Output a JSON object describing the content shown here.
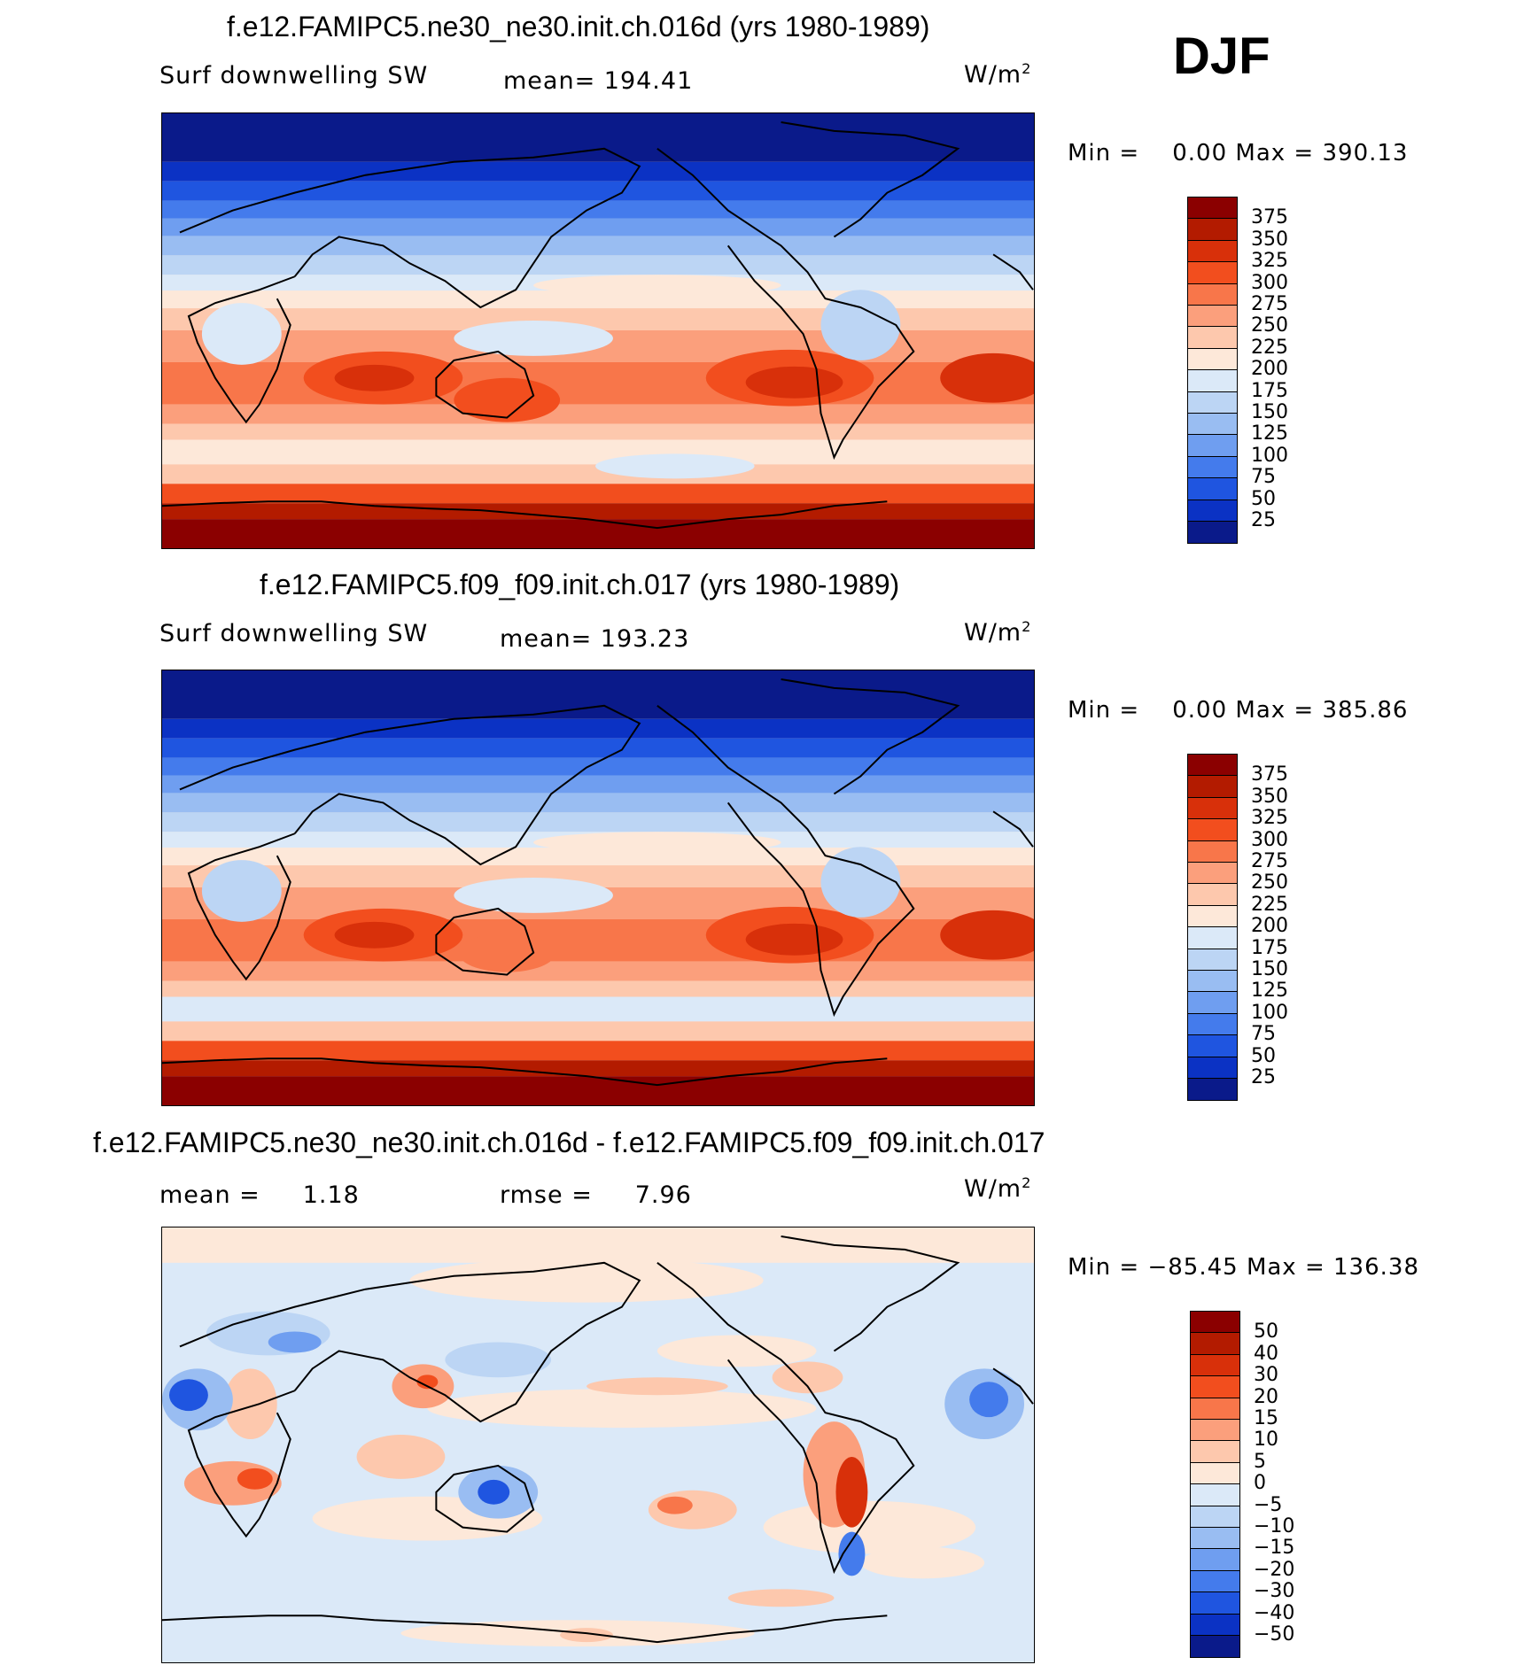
{
  "season": "DJF",
  "panels": [
    {
      "title": "f.e12.FAMIPC5.ne30_ne30.init.ch.016d (yrs 1980-1989)",
      "variable": "Surf downwelling SW",
      "stat_text": "mean=  194.41",
      "units": "W/m",
      "units_sup": "2",
      "min_label": "Min  =",
      "min_value": "0.00",
      "max_label": "Max  =",
      "max_value": "390.13"
    },
    {
      "title": "f.e12.FAMIPC5.f09_f09.init.ch.017 (yrs 1980-1989)",
      "variable": "Surf downwelling SW",
      "stat_text": "mean=  193.23",
      "units": "W/m",
      "units_sup": "2",
      "min_label": "Min  =",
      "min_value": "0.00",
      "max_label": "Max  =",
      "max_value": "385.86"
    },
    {
      "title": "f.e12.FAMIPC5.ne30_ne30.init.ch.016d - f.e12.FAMIPC5.f09_f09.init.ch.017",
      "mean_label": "mean  =",
      "mean_value": "1.18",
      "rmse_label": "rmse  =",
      "rmse_value": "7.96",
      "units": "W/m",
      "units_sup": "2",
      "min_label": "Min  =",
      "min_value": "−85.45",
      "max_label": "Max  =",
      "max_value": "136.38"
    }
  ],
  "colorbars": {
    "sw": {
      "labels": [
        "375",
        "350",
        "325",
        "300",
        "275",
        "250",
        "225",
        "200",
        "175",
        "150",
        "125",
        "100",
        "75",
        "50",
        "25"
      ],
      "colors": [
        "#8b0000",
        "#b31b00",
        "#d8300a",
        "#f24e1e",
        "#f8764a",
        "#fb9f7c",
        "#fdc8ad",
        "#fde8d9",
        "#dbe9f8",
        "#bcd5f4",
        "#99bdf2",
        "#6f9ef0",
        "#447bec",
        "#1f55e0",
        "#0b32c4",
        "#0a1a8a"
      ]
    },
    "diff": {
      "labels": [
        "50",
        "40",
        "30",
        "20",
        "15",
        "10",
        "5",
        "0",
        "−5",
        "−10",
        "−15",
        "−20",
        "−30",
        "−40",
        "−50"
      ],
      "colors": [
        "#8b0000",
        "#b31b00",
        "#d8300a",
        "#f24e1e",
        "#f8764a",
        "#fb9f7c",
        "#fdc8ad",
        "#fde8d9",
        "#dbe9f8",
        "#bcd5f4",
        "#99bdf2",
        "#6f9ef0",
        "#447bec",
        "#1f55e0",
        "#0b32c4",
        "#0a1a8a"
      ]
    }
  },
  "palette_names": {
    "deep_blue": "#0a1a8a",
    "dark_red": "#8b0000"
  }
}
